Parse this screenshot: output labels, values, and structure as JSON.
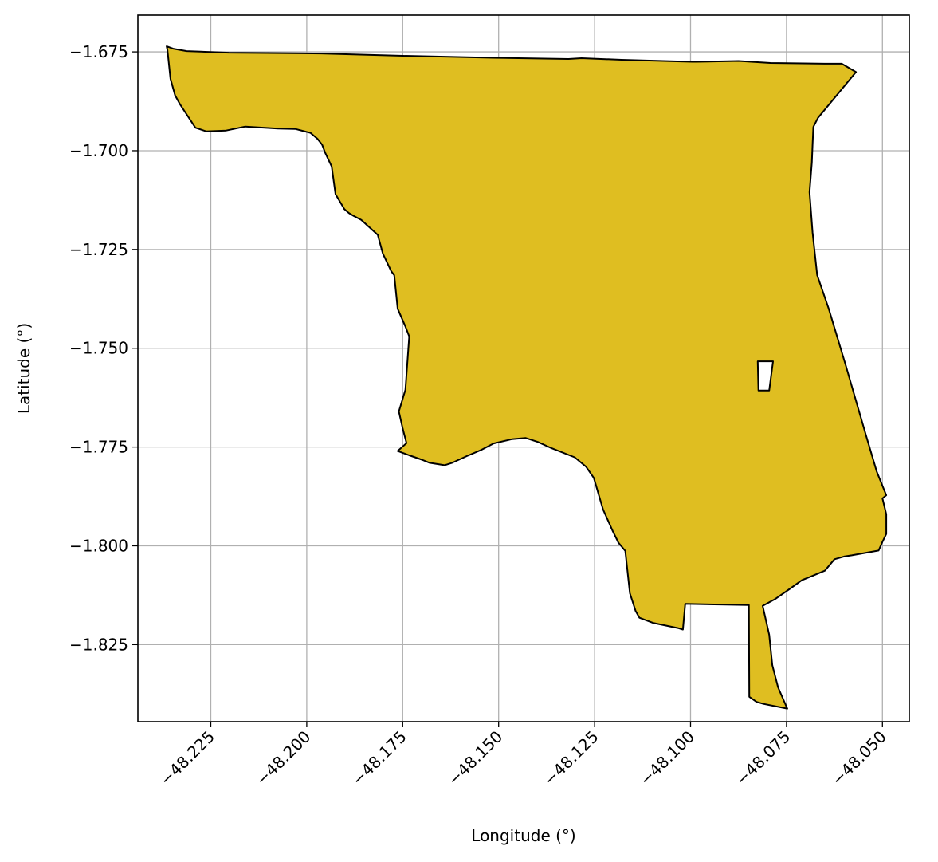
{
  "chart_data": {
    "type": "map",
    "xlabel": "Longitude (°)",
    "ylabel": "Latitude (°)",
    "xlim": [
      -48.244,
      -48.043
    ],
    "ylim": [
      -1.8445,
      -1.6657
    ],
    "grid": true,
    "x_ticks": [
      -48.225,
      -48.2,
      -48.175,
      -48.15,
      -48.125,
      -48.1,
      -48.075,
      -48.05
    ],
    "y_ticks": [
      -1.675,
      -1.7,
      -1.725,
      -1.75,
      -1.775,
      -1.8,
      -1.825
    ],
    "x_tick_labels": [
      "−48.225",
      "−48.200",
      "−48.175",
      "−48.150",
      "−48.125",
      "−48.100",
      "−48.075",
      "−48.050"
    ],
    "y_tick_labels": [
      "−1.675",
      "−1.700",
      "−1.725",
      "−1.750",
      "−1.775",
      "−1.800",
      "−1.825"
    ],
    "fill_color": "#dfbe21",
    "edge_color": "#000000",
    "grid_color": "#b0b0b0",
    "polygon": {
      "exterior": [
        [
          -48.2348,
          -1.6742
        ],
        [
          -48.2313,
          -1.6748
        ],
        [
          -48.2203,
          -1.6752
        ],
        [
          -48.1962,
          -1.6754
        ],
        [
          -48.175,
          -1.676
        ],
        [
          -48.1515,
          -1.6765
        ],
        [
          -48.1318,
          -1.6768
        ],
        [
          -48.1284,
          -1.6766
        ],
        [
          -48.118,
          -1.677
        ],
        [
          -48.1035,
          -1.6774
        ],
        [
          -48.0995,
          -1.6775
        ],
        [
          -48.0985,
          -1.6775
        ],
        [
          -48.0875,
          -1.6773
        ],
        [
          -48.0792,
          -1.6778
        ],
        [
          -48.065,
          -1.678
        ],
        [
          -48.0606,
          -1.678
        ],
        [
          -48.0569,
          -1.6801
        ],
        [
          -48.0668,
          -1.6917
        ],
        [
          -48.068,
          -1.694
        ],
        [
          -48.0682,
          -1.6985
        ],
        [
          -48.0684,
          -1.703
        ],
        [
          -48.069,
          -1.7105
        ],
        [
          -48.0682,
          -1.7207
        ],
        [
          -48.067,
          -1.7315
        ],
        [
          -48.064,
          -1.74
        ],
        [
          -48.0595,
          -1.7545
        ],
        [
          -48.0543,
          -1.772
        ],
        [
          -48.0515,
          -1.7812
        ],
        [
          -48.049,
          -1.7872
        ],
        [
          -48.05,
          -1.788
        ],
        [
          -48.049,
          -1.792
        ],
        [
          -48.049,
          -1.7945
        ],
        [
          -48.049,
          -1.797
        ],
        [
          -48.05,
          -1.799
        ],
        [
          -48.051,
          -1.8012
        ],
        [
          -48.058,
          -1.8024
        ],
        [
          -48.06,
          -1.8027
        ],
        [
          -48.0625,
          -1.8034
        ],
        [
          -48.065,
          -1.8063
        ],
        [
          -48.068,
          -1.8075
        ],
        [
          -48.071,
          -1.8087
        ],
        [
          -48.074,
          -1.8108
        ],
        [
          -48.078,
          -1.8135
        ],
        [
          -48.0812,
          -1.8152
        ],
        [
          -48.0795,
          -1.8225
        ],
        [
          -48.0787,
          -1.8302
        ],
        [
          -48.0772,
          -1.8358
        ],
        [
          -48.0748,
          -1.8412
        ],
        [
          -48.081,
          -1.84
        ],
        [
          -48.0828,
          -1.8395
        ],
        [
          -48.0847,
          -1.8382
        ],
        [
          -48.0848,
          -1.815
        ],
        [
          -48.1014,
          -1.8147
        ],
        [
          -48.102,
          -1.8212
        ],
        [
          -48.1033,
          -1.8208
        ],
        [
          -48.1098,
          -1.8195
        ],
        [
          -48.1133,
          -1.8182
        ],
        [
          -48.1143,
          -1.8165
        ],
        [
          -48.1158,
          -1.812
        ],
        [
          -48.1162,
          -1.8085
        ],
        [
          -48.117,
          -1.8013
        ],
        [
          -48.1188,
          -1.7992
        ],
        [
          -48.1203,
          -1.7962
        ],
        [
          -48.1228,
          -1.7908
        ],
        [
          -48.1252,
          -1.7828
        ],
        [
          -48.1272,
          -1.78
        ],
        [
          -48.1302,
          -1.7776
        ],
        [
          -48.1362,
          -1.7753
        ],
        [
          -48.1398,
          -1.7737
        ],
        [
          -48.143,
          -1.7727
        ],
        [
          -48.1465,
          -1.773
        ],
        [
          -48.1513,
          -1.7741
        ],
        [
          -48.1547,
          -1.7758
        ],
        [
          -48.1583,
          -1.7773
        ],
        [
          -48.1621,
          -1.779
        ],
        [
          -48.1641,
          -1.7796
        ],
        [
          -48.168,
          -1.779
        ],
        [
          -48.17,
          -1.7782
        ],
        [
          -48.1733,
          -1.7771
        ],
        [
          -48.1763,
          -1.776
        ],
        [
          -48.174,
          -1.774
        ],
        [
          -48.175,
          -1.7703
        ],
        [
          -48.176,
          -1.766
        ],
        [
          -48.1743,
          -1.7605
        ],
        [
          -48.1733,
          -1.747
        ],
        [
          -48.1743,
          -1.7445
        ],
        [
          -48.1763,
          -1.74
        ],
        [
          -48.1772,
          -1.7315
        ],
        [
          -48.178,
          -1.7305
        ],
        [
          -48.1802,
          -1.726
        ],
        [
          -48.1815,
          -1.7213
        ],
        [
          -48.1858,
          -1.7175
        ],
        [
          -48.1878,
          -1.7165
        ],
        [
          -48.189,
          -1.7158
        ],
        [
          -48.1902,
          -1.7148
        ],
        [
          -48.1925,
          -1.711
        ],
        [
          -48.1935,
          -1.704
        ],
        [
          -48.1952,
          -1.7005
        ],
        [
          -48.196,
          -1.6985
        ],
        [
          -48.1972,
          -1.697
        ],
        [
          -48.199,
          -1.6955
        ],
        [
          -48.203,
          -1.6945
        ],
        [
          -48.2075,
          -1.6944
        ],
        [
          -48.216,
          -1.6939
        ],
        [
          -48.221,
          -1.6949
        ],
        [
          -48.2262,
          -1.6951
        ],
        [
          -48.229,
          -1.6942
        ],
        [
          -48.233,
          -1.6883
        ],
        [
          -48.2343,
          -1.686
        ],
        [
          -48.2355,
          -1.6818
        ],
        [
          -48.2363,
          -1.6745
        ],
        [
          -48.2365,
          -1.6736
        ]
      ],
      "hole": [
        [
          -48.0825,
          -1.7533
        ],
        [
          -48.0785,
          -1.7533
        ],
        [
          -48.0795,
          -1.7607
        ],
        [
          -48.0823,
          -1.7607
        ]
      ]
    }
  }
}
